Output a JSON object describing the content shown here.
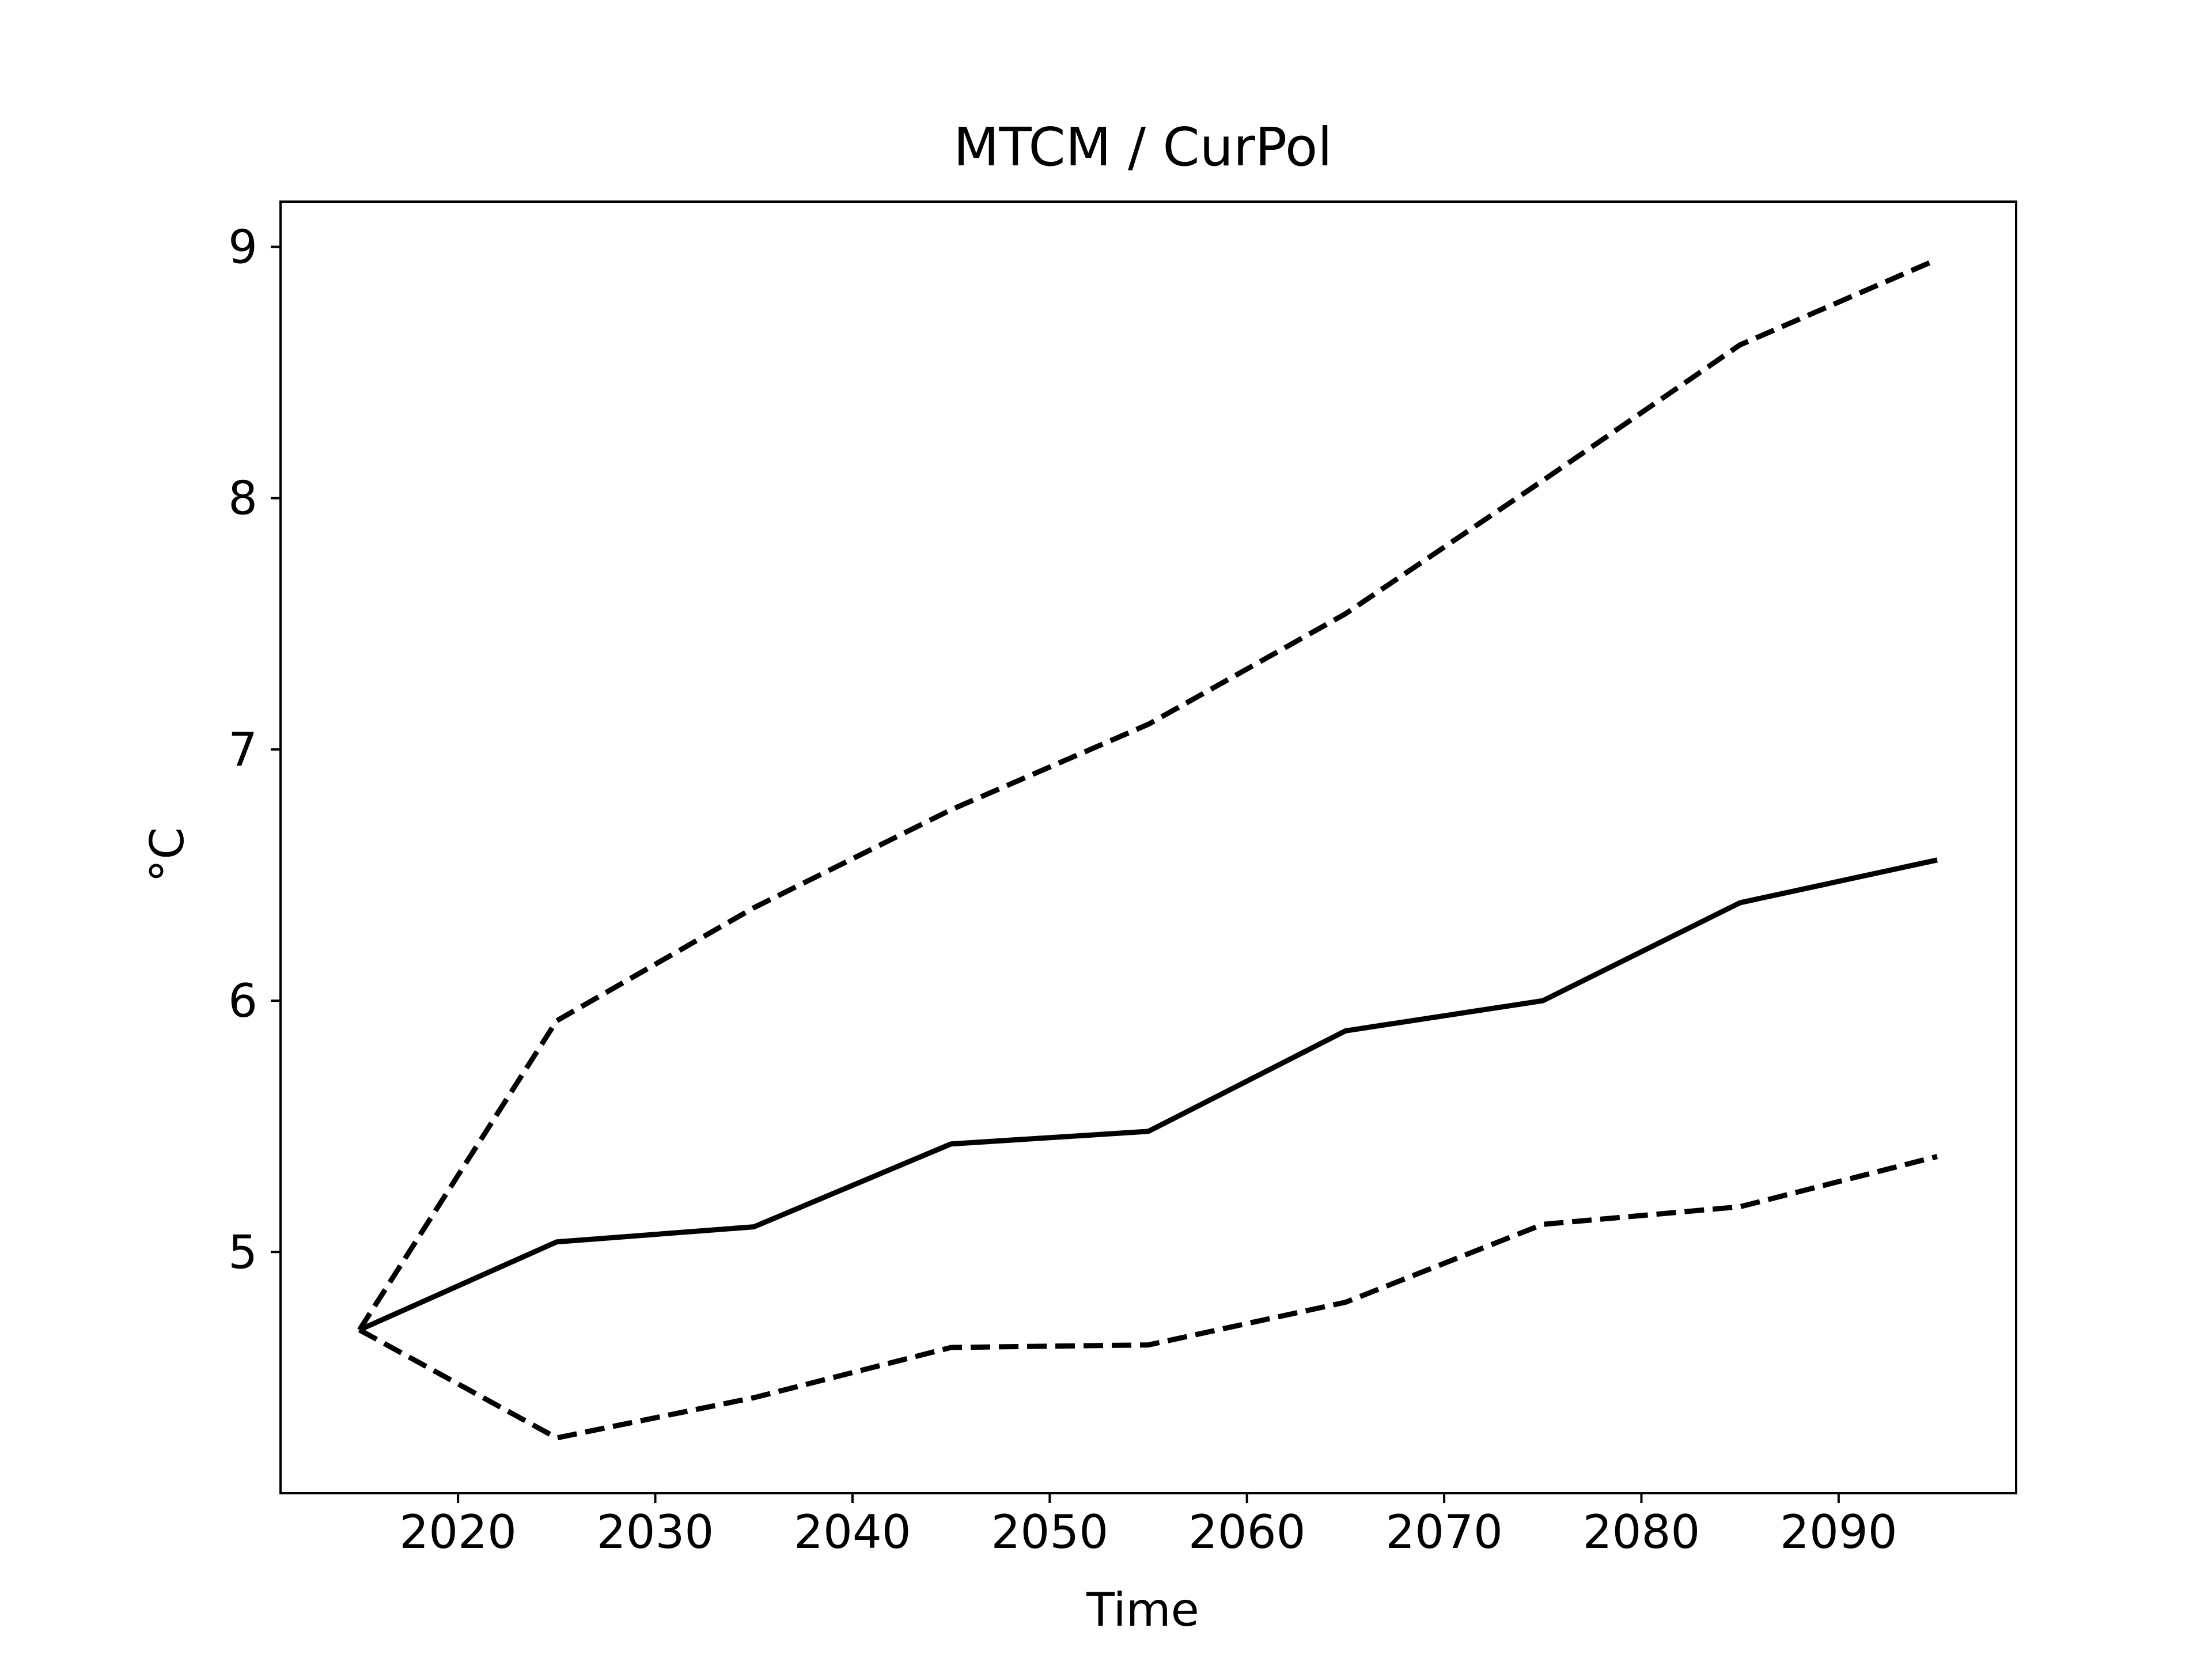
{
  "chart_data": {
    "type": "line",
    "title": "MTCM / CurPol",
    "xlabel": "Time",
    "ylabel": "°C",
    "xlim": [
      2011,
      2099
    ],
    "ylim": [
      4.04,
      9.18
    ],
    "xticks": [
      2020,
      2030,
      2040,
      2050,
      2060,
      2070,
      2080,
      2090
    ],
    "yticks": [
      5,
      6,
      7,
      8,
      9
    ],
    "grid": false,
    "legend": false,
    "x": [
      2015,
      2025,
      2035,
      2045,
      2055,
      2065,
      2075,
      2085,
      2095
    ],
    "series": [
      {
        "style": "solid",
        "values": [
          4.69,
          5.04,
          5.1,
          5.43,
          5.48,
          5.88,
          6.0,
          6.39,
          6.56
        ]
      },
      {
        "style": "dashed",
        "values": [
          4.69,
          5.92,
          6.37,
          6.76,
          7.1,
          7.54,
          8.07,
          8.61,
          8.95
        ]
      },
      {
        "style": "dashed",
        "values": [
          4.69,
          4.26,
          4.42,
          4.62,
          4.63,
          4.8,
          5.11,
          5.18,
          5.38
        ]
      }
    ],
    "colors": {
      "line": "#000000",
      "axes": "#000000",
      "background": "#ffffff"
    }
  }
}
